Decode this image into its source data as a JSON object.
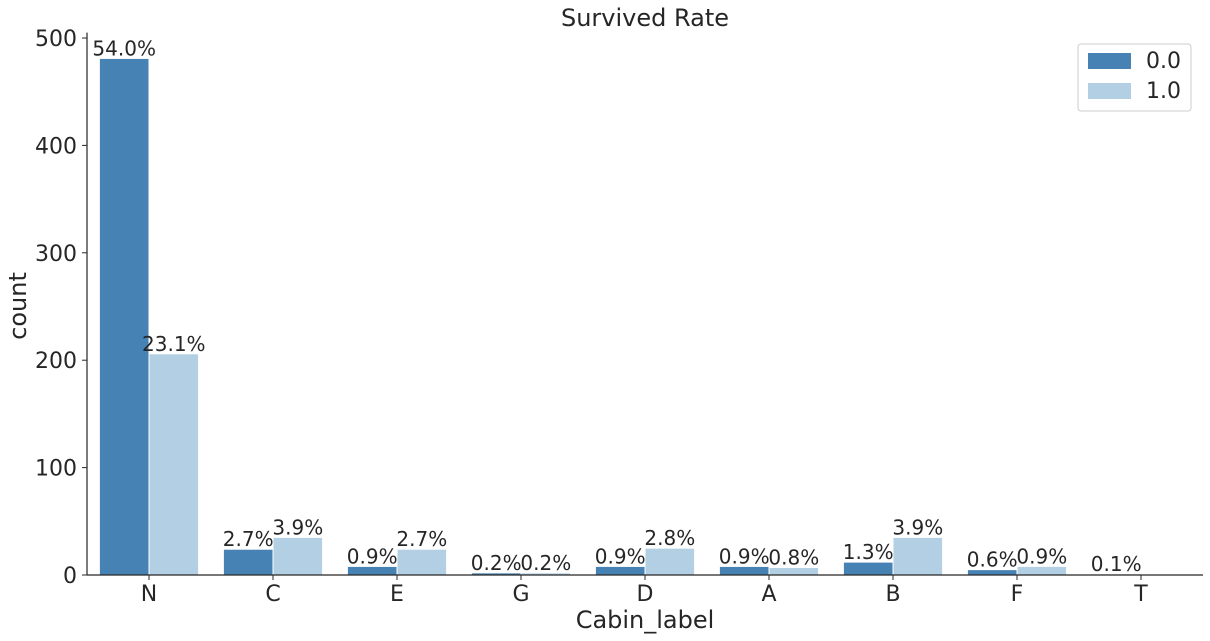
{
  "chart_data": {
    "type": "bar",
    "title": "Survived Rate",
    "xlabel": "Cabin_label",
    "ylabel": "count",
    "ylim": [
      0,
      505
    ],
    "yticks": [
      0,
      100,
      200,
      300,
      400,
      500
    ],
    "categories": [
      "N",
      "C",
      "E",
      "G",
      "D",
      "A",
      "B",
      "F",
      "T"
    ],
    "series": [
      {
        "name": "0.0",
        "color": "#4682b4",
        "values": [
          481,
          24,
          8,
          2,
          8,
          8,
          12,
          5,
          1
        ],
        "labels": [
          "54.0%",
          "2.7%",
          "0.9%",
          "0.2%",
          "0.9%",
          "0.9%",
          "1.3%",
          "0.6%",
          "0.1%"
        ]
      },
      {
        "name": "1.0",
        "color": "#b3cfe3",
        "values": [
          206,
          35,
          24,
          2,
          25,
          7,
          35,
          8,
          0
        ],
        "labels": [
          "23.1%",
          "3.9%",
          "2.7%",
          "0.2%",
          "2.8%",
          "0.8%",
          "3.9%",
          "0.9%",
          null
        ]
      }
    ],
    "legend": "top-right",
    "grid": false
  }
}
